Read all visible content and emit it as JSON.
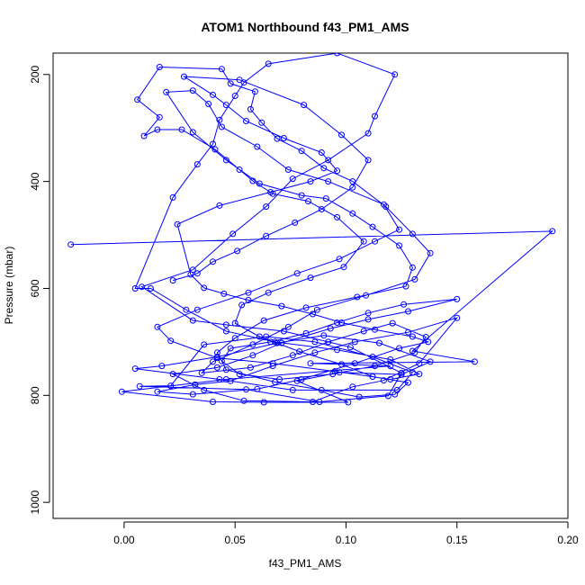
{
  "chart_data": {
    "type": "line",
    "title": "ATOM1 Northbound f43_PM1_AMS",
    "xlabel": "f43_PM1_AMS",
    "ylabel": "Pressure (mbar)",
    "xlim": [
      -0.032,
      0.2
    ],
    "ylim": [
      1030,
      160
    ],
    "y_reversed": true,
    "x_ticks": [
      0.0,
      0.05,
      0.1,
      0.15,
      0.2
    ],
    "x_tick_labels": [
      "0.00",
      "0.05",
      "0.10",
      "0.15",
      "0.20"
    ],
    "y_ticks": [
      200,
      400,
      600,
      800,
      1000
    ],
    "y_tick_labels": [
      "200",
      "400",
      "600",
      "800",
      "1000"
    ],
    "grid": false,
    "legend": "none",
    "marker": "open-circle",
    "line_color": "#0000ff",
    "series": [
      {
        "points": [
          [
            -0.024,
            518
          ],
          [
            0.193,
            493
          ],
          [
            0.13,
            717
          ],
          [
            0.158,
            737
          ],
          [
            0.084,
            740
          ],
          [
            0.12,
            745
          ],
          [
            0.046,
            770
          ],
          [
            -0.001,
            793
          ],
          [
            0.04,
            812
          ],
          [
            0.063,
            813
          ],
          [
            0.101,
            813
          ],
          [
            0.078,
            773
          ],
          [
            0.097,
            757
          ],
          [
            0.125,
            761
          ],
          [
            0.138,
            737
          ],
          [
            0.115,
            702
          ],
          [
            0.09,
            688
          ],
          [
            0.069,
            702
          ],
          [
            0.042,
            728
          ],
          [
            0.017,
            745
          ],
          [
            0.005,
            750
          ],
          [
            0.043,
            770
          ],
          [
            0.076,
            790
          ],
          [
            0.123,
            790
          ],
          [
            0.13,
            757
          ],
          [
            0.112,
            728
          ],
          [
            0.086,
            700
          ],
          [
            0.064,
            690
          ],
          [
            0.036,
            705
          ],
          [
            0.021,
            782
          ],
          [
            0.007,
            783
          ],
          [
            0.055,
            789
          ],
          [
            0.088,
            812
          ],
          [
            0.119,
            801
          ],
          [
            0.125,
            758
          ],
          [
            0.102,
            710
          ],
          [
            0.072,
            680
          ],
          [
            0.046,
            668
          ],
          [
            0.031,
            660
          ],
          [
            0.008,
            597
          ],
          [
            0.031,
            565
          ],
          [
            0.049,
            498
          ],
          [
            0.064,
            447
          ],
          [
            0.076,
            395
          ],
          [
            0.092,
            360
          ],
          [
            0.11,
            310
          ],
          [
            0.113,
            278
          ],
          [
            0.122,
            200
          ],
          [
            0.096,
            160
          ],
          [
            0.065,
            180
          ],
          [
            0.054,
            215
          ],
          [
            0.05,
            240
          ],
          [
            0.043,
            285
          ],
          [
            0.04,
            330
          ],
          [
            0.033,
            368
          ],
          [
            0.022,
            430
          ],
          [
            0.005,
            600
          ],
          [
            0.012,
            600
          ],
          [
            0.028,
            640
          ],
          [
            0.046,
            680
          ],
          [
            0.068,
            700
          ],
          [
            0.096,
            715
          ],
          [
            0.12,
            733
          ],
          [
            0.133,
            760
          ],
          [
            0.12,
            770
          ],
          [
            0.095,
            755
          ],
          [
            0.067,
            740
          ],
          [
            0.042,
            730
          ],
          [
            0.021,
            698
          ],
          [
            0.015,
            672
          ],
          [
            0.033,
            640
          ],
          [
            0.056,
            608
          ],
          [
            0.078,
            572
          ],
          [
            0.097,
            545
          ],
          [
            0.113,
            512
          ],
          [
            0.124,
            490
          ],
          [
            0.117,
            443
          ],
          [
            0.092,
            400
          ],
          [
            0.074,
            378
          ],
          [
            0.06,
            335
          ],
          [
            0.044,
            298
          ],
          [
            0.038,
            255
          ],
          [
            0.031,
            230
          ],
          [
            0.019,
            233
          ],
          [
            0.031,
            308
          ],
          [
            0.046,
            360
          ],
          [
            0.061,
            404
          ],
          [
            0.08,
            426
          ],
          [
            0.091,
            432
          ],
          [
            0.103,
            460
          ],
          [
            0.112,
            485
          ],
          [
            0.124,
            520
          ],
          [
            0.13,
            561
          ],
          [
            0.127,
            596
          ],
          [
            0.105,
            616
          ],
          [
            0.082,
            636
          ],
          [
            0.063,
            660
          ],
          [
            0.05,
            693
          ],
          [
            0.042,
            720
          ],
          [
            0.046,
            752
          ],
          [
            0.068,
            775
          ],
          [
            0.089,
            790
          ],
          [
            0.106,
            803
          ],
          [
            0.122,
            798
          ],
          [
            0.128,
            776
          ],
          [
            0.112,
            765
          ],
          [
            0.098,
            742
          ],
          [
            0.079,
            718
          ],
          [
            0.061,
            690
          ],
          [
            0.05,
            665
          ],
          [
            0.053,
            631
          ],
          [
            0.065,
            608
          ],
          [
            0.084,
            580
          ],
          [
            0.099,
            560
          ],
          [
            0.108,
            512
          ],
          [
            0.096,
            467
          ],
          [
            0.083,
            437
          ],
          [
            0.067,
            423
          ],
          [
            0.058,
            399
          ],
          [
            0.052,
            378
          ],
          [
            0.041,
            340
          ],
          [
            0.026,
            303
          ],
          [
            0.015,
            303
          ],
          [
            0.009,
            315
          ],
          [
            0.016,
            280
          ],
          [
            0.006,
            247
          ],
          [
            0.016,
            186
          ],
          [
            0.044,
            190
          ],
          [
            0.048,
            217
          ],
          [
            0.059,
            232
          ],
          [
            0.057,
            265
          ],
          [
            0.062,
            290
          ],
          [
            0.069,
            320
          ],
          [
            0.08,
            343
          ],
          [
            0.09,
            375
          ],
          [
            0.103,
            400
          ],
          [
            0.118,
            447
          ],
          [
            0.13,
            498
          ],
          [
            0.138,
            534
          ],
          [
            0.131,
            583
          ],
          [
            0.109,
            613
          ],
          [
            0.087,
            640
          ],
          [
            0.074,
            672
          ],
          [
            0.058,
            705
          ],
          [
            0.04,
            737
          ],
          [
            0.035,
            758
          ],
          [
            0.057,
            748
          ],
          [
            0.076,
            725
          ],
          [
            0.092,
            700
          ],
          [
            0.108,
            680
          ],
          [
            0.121,
            665
          ],
          [
            0.136,
            691
          ],
          [
            0.131,
            720
          ],
          [
            0.113,
            745
          ],
          [
            0.094,
            760
          ],
          [
            0.07,
            770
          ],
          [
            0.052,
            760
          ],
          [
            0.044,
            736
          ],
          [
            0.048,
            712
          ],
          [
            0.066,
            700
          ],
          [
            0.082,
            684
          ],
          [
            0.096,
            664
          ],
          [
            0.11,
            646
          ],
          [
            0.126,
            630
          ],
          [
            0.15,
            620
          ],
          [
            0.128,
            643
          ],
          [
            0.11,
            658
          ],
          [
            0.093,
            675
          ],
          [
            0.071,
            702
          ],
          [
            0.058,
            725
          ],
          [
            0.042,
            748
          ],
          [
            0.022,
            760
          ],
          [
            0.036,
            790
          ],
          [
            0.054,
            810
          ],
          [
            0.085,
            812
          ],
          [
            0.103,
            784
          ],
          [
            0.117,
            772
          ],
          [
            0.133,
            740
          ],
          [
            0.15,
            655
          ],
          [
            0.128,
            682
          ],
          [
            0.104,
            700
          ],
          [
            0.086,
            720
          ],
          [
            0.067,
            745
          ],
          [
            0.048,
            773
          ],
          [
            0.032,
            780
          ],
          [
            0.015,
            793
          ],
          [
            0.031,
            798
          ],
          [
            0.06,
            788
          ],
          [
            0.08,
            770
          ],
          [
            0.104,
            740
          ],
          [
            0.124,
            712
          ],
          [
            0.137,
            700
          ],
          [
            0.13,
            690
          ],
          [
            0.113,
            677
          ],
          [
            0.098,
            664
          ],
          [
            0.085,
            648
          ],
          [
            0.071,
            633
          ],
          [
            0.056,
            622
          ],
          [
            0.045,
            610
          ],
          [
            0.036,
            599
          ],
          [
            0.03,
            574
          ],
          [
            0.024,
            480
          ],
          [
            0.043,
            445
          ],
          [
            0.066,
            420
          ],
          [
            0.084,
            400
          ],
          [
            0.096,
            380
          ],
          [
            0.089,
            346
          ],
          [
            0.072,
            319
          ],
          [
            0.055,
            287
          ],
          [
            0.046,
            257
          ],
          [
            0.04,
            238
          ],
          [
            0.027,
            204
          ],
          [
            0.052,
            210
          ],
          [
            0.081,
            257
          ],
          [
            0.098,
            313
          ],
          [
            0.11,
            360
          ],
          [
            0.103,
            411
          ],
          [
            0.089,
            452
          ],
          [
            0.077,
            477
          ],
          [
            0.064,
            502
          ],
          [
            0.051,
            530
          ],
          [
            0.04,
            550
          ],
          [
            0.033,
            572
          ],
          [
            0.022,
            585
          ]
        ]
      }
    ]
  }
}
